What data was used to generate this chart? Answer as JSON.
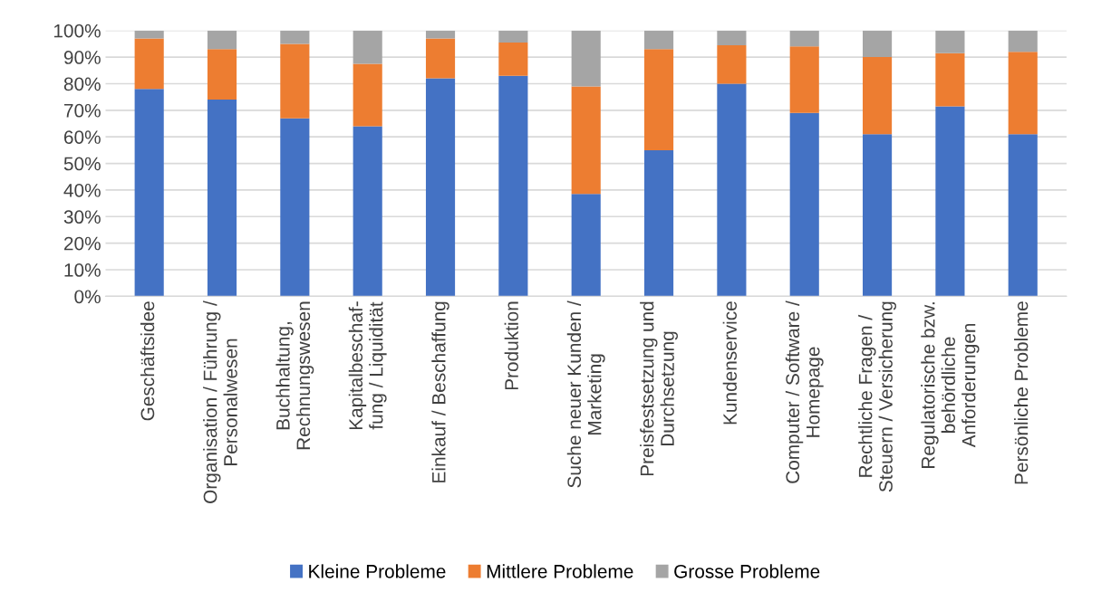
{
  "chart_data": {
    "type": "bar",
    "stacked": true,
    "categories": [
      "Geschäftsidee",
      "Organisation / Führung /\nPersonalwesen",
      "Buchhaltung,\nRechnungswesen",
      "Kapitalbeschaf-\nfung / Liquidität",
      "Einkauf / Beschaffung",
      "Produktion",
      "Suche neuer Kunden /\nMarketing",
      "Preisfestsetzung und\nDurchsetzung",
      "Kundenservice",
      "Computer / Software /\nHomepage",
      "Rechtliche Fragen /\nSteuern / Versicherung",
      "Regulatorische bzw.\nbehördliche\nAnforderungen",
      "Persönliche Probleme"
    ],
    "series": [
      {
        "name": "Kleine Probleme",
        "color": "#4472c4",
        "values": [
          78,
          74,
          67,
          64,
          82,
          83,
          38.5,
          55,
          80,
          69,
          61,
          71.5,
          61
        ]
      },
      {
        "name": "Mittlere Probleme",
        "color": "#ed7d31",
        "values": [
          19,
          19,
          28,
          23.5,
          15,
          12.5,
          40.5,
          38,
          14.5,
          25,
          29,
          20,
          31
        ]
      },
      {
        "name": "Grosse Probleme",
        "color": "#a5a5a5",
        "values": [
          3,
          7,
          5,
          12.5,
          3,
          4.5,
          21,
          7,
          5.5,
          6,
          10,
          8.5,
          8
        ]
      }
    ],
    "ylim": [
      0,
      100
    ],
    "yticks": [
      {
        "value": 0,
        "label": "0%"
      },
      {
        "value": 10,
        "label": "10%"
      },
      {
        "value": 20,
        "label": "20%"
      },
      {
        "value": 30,
        "label": "30%"
      },
      {
        "value": 40,
        "label": "40%"
      },
      {
        "value": 50,
        "label": "50%"
      },
      {
        "value": 60,
        "label": "60%"
      },
      {
        "value": 70,
        "label": "70%"
      },
      {
        "value": 80,
        "label": "80%"
      },
      {
        "value": 90,
        "label": "90%"
      },
      {
        "value": 100,
        "label": "100%"
      }
    ],
    "grid": "y",
    "legend": "bottom"
  }
}
